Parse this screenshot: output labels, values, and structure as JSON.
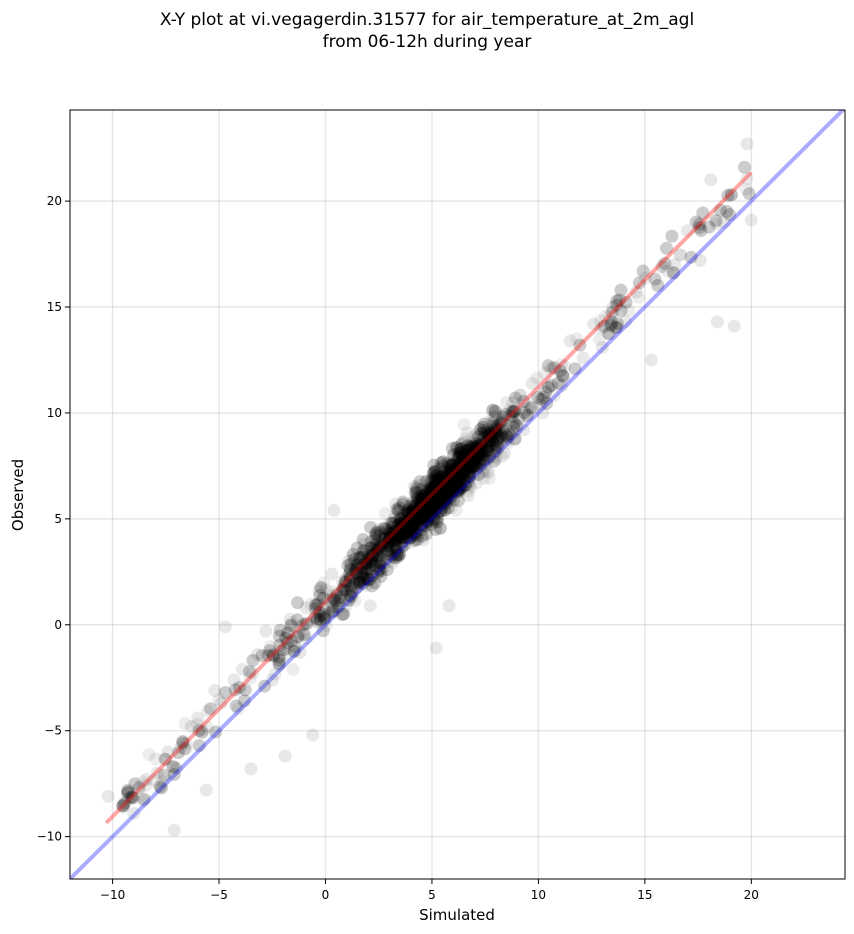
{
  "chart_data": {
    "type": "scatter",
    "title": [
      "X-Y plot at vi.vegagerdin.31577 for air_temperature_at_2m_agl",
      "from 06-12h during year"
    ],
    "xlabel": "Simulated",
    "ylabel": "Observed",
    "xlim": [
      -12,
      24.4
    ],
    "ylim": [
      -12,
      24.3
    ],
    "xticks": [
      -10,
      -5,
      0,
      5,
      10,
      15,
      20
    ],
    "yticks": [
      -10,
      -5,
      0,
      5,
      10,
      15,
      20
    ],
    "xtick_labels": [
      "−10",
      "−5",
      "0",
      "5",
      "10",
      "15",
      "20"
    ],
    "ytick_labels": [
      "−10",
      "−5",
      "0",
      "5",
      "10",
      "15",
      "20"
    ],
    "grid": true,
    "point_color": "#000000",
    "point_alpha": 0.07,
    "series": [
      {
        "marker": "circle",
        "points_sample": [
          [
            -10.2,
            -8.1
          ],
          [
            -9.5,
            -8.6
          ],
          [
            -9.0,
            -8.9
          ],
          [
            -8.4,
            -7.3
          ],
          [
            -7.9,
            -7.0
          ],
          [
            -7.4,
            -6.0
          ],
          [
            -7.1,
            -9.7
          ],
          [
            -6.8,
            -5.8
          ],
          [
            -6.3,
            -4.8
          ],
          [
            -6.0,
            -4.4
          ],
          [
            -5.6,
            -7.8
          ],
          [
            -5.2,
            -3.1
          ],
          [
            -4.9,
            -3.7
          ],
          [
            -4.7,
            -0.1
          ],
          [
            -4.3,
            -2.6
          ],
          [
            -3.9,
            -2.1
          ],
          [
            -3.5,
            -6.8
          ],
          [
            -3.2,
            -1.4
          ],
          [
            -2.8,
            -0.3
          ],
          [
            -2.5,
            -2.6
          ],
          [
            -2.1,
            -1.2
          ],
          [
            -1.9,
            -6.2
          ],
          [
            -1.6,
            0.1
          ],
          [
            -1.2,
            -1.3
          ],
          [
            -0.9,
            0.8
          ],
          [
            -0.6,
            -5.2
          ],
          [
            -0.3,
            1.6
          ],
          [
            0.0,
            0.4
          ],
          [
            0.3,
            2.4
          ],
          [
            0.4,
            5.4
          ],
          [
            0.8,
            1.7
          ],
          [
            1.1,
            3.0
          ],
          [
            1.5,
            1.9
          ],
          [
            1.8,
            3.8
          ],
          [
            2.1,
            0.9
          ],
          [
            2.5,
            4.5
          ],
          [
            2.9,
            3.1
          ],
          [
            3.3,
            5.7
          ],
          [
            3.8,
            4.1
          ],
          [
            4.2,
            6.3
          ],
          [
            4.6,
            4.0
          ],
          [
            5.1,
            6.9
          ],
          [
            5.2,
            -1.1
          ],
          [
            5.6,
            5.4
          ],
          [
            5.8,
            0.9
          ],
          [
            6.2,
            8.3
          ],
          [
            6.7,
            6.1
          ],
          [
            7.1,
            9.0
          ],
          [
            7.4,
            7.2
          ],
          [
            7.9,
            9.8
          ],
          [
            8.4,
            8.1
          ],
          [
            8.8,
            10.5
          ],
          [
            9.3,
            9.2
          ],
          [
            9.7,
            11.4
          ],
          [
            10.2,
            10.0
          ],
          [
            10.6,
            12.1
          ],
          [
            11.1,
            11.3
          ],
          [
            11.5,
            13.4
          ],
          [
            12.1,
            12.6
          ],
          [
            12.6,
            14.2
          ],
          [
            13.0,
            13.1
          ],
          [
            13.5,
            15.0
          ],
          [
            14.1,
            14.3
          ],
          [
            14.6,
            15.7
          ],
          [
            15.3,
            12.5
          ],
          [
            15.8,
            16.9
          ],
          [
            16.4,
            17.0
          ],
          [
            17.0,
            18.6
          ],
          [
            17.6,
            17.2
          ],
          [
            18.1,
            21.0
          ],
          [
            18.4,
            14.3
          ],
          [
            18.7,
            19.0
          ],
          [
            19.2,
            14.1
          ],
          [
            19.8,
            22.7
          ],
          [
            20.0,
            19.1
          ]
        ]
      }
    ],
    "reference_lines": [
      {
        "name": "",
        "color": "#0000ff",
        "alpha": 0.33,
        "x": [
          -12,
          24.4
        ],
        "y": [
          -12,
          24.4
        ]
      },
      {
        "name": "",
        "color": "#ff0000",
        "alpha": 0.35,
        "x": [
          -10.3,
          20.0
        ],
        "y": [
          -9.35,
          21.35
        ]
      }
    ]
  }
}
